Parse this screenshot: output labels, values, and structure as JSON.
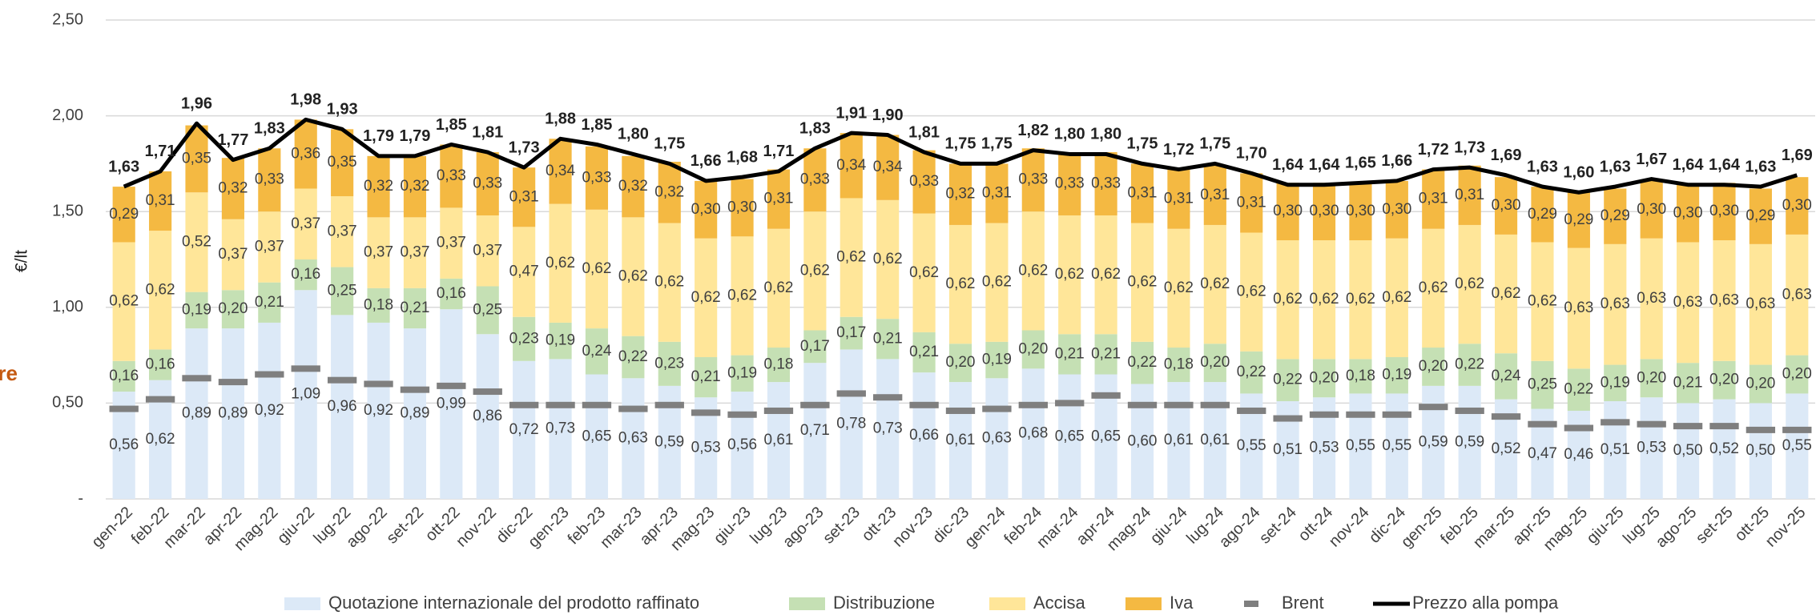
{
  "chart_data": {
    "type": "bar",
    "stacked": true,
    "y_axis_label": "€/lt",
    "side_label": "re",
    "categories": [
      "gen-22",
      "feb-22",
      "mar-22",
      "apr-22",
      "mag-22",
      "giu-22",
      "lug-22",
      "ago-22",
      "set-22",
      "ott-22",
      "nov-22",
      "dic-22",
      "gen-23",
      "feb-23",
      "mar-23",
      "apr-23",
      "mag-23",
      "giu-23",
      "lug-23",
      "ago-23",
      "set-23",
      "ott-23",
      "nov-23",
      "dic-23",
      "gen-24",
      "feb-24",
      "mar-24",
      "apr-24",
      "mag-24",
      "giu-24",
      "lug-24",
      "ago-24",
      "set-24",
      "ott-24",
      "nov-24",
      "dic-24",
      "gen-25",
      "feb-25",
      "mar-25",
      "apr-25",
      "mag-25",
      "giu-25",
      "lug-25",
      "ago-25",
      "set-25",
      "ott-25",
      "nov-25"
    ],
    "ylim": [
      0,
      2.5
    ],
    "yticks": [
      {
        "value": 0,
        "label": "-"
      },
      {
        "value": 0.5,
        "label": "0,50"
      },
      {
        "value": 1,
        "label": "1,00"
      },
      {
        "value": 1.5,
        "label": "1,50"
      },
      {
        "value": 2,
        "label": "2,00"
      },
      {
        "value": 2.5,
        "label": "2,50"
      }
    ],
    "grid": true,
    "series": [
      {
        "name": "Quotazione internazionale del prodotto raffinato",
        "kind": "bar",
        "color": "#dce9f7",
        "values": [
          0.56,
          0.62,
          0.89,
          0.89,
          0.92,
          1.09,
          0.96,
          0.92,
          0.89,
          0.99,
          0.86,
          0.72,
          0.73,
          0.65,
          0.63,
          0.59,
          0.53,
          0.56,
          0.61,
          0.71,
          0.78,
          0.73,
          0.66,
          0.61,
          0.63,
          0.68,
          0.65,
          0.65,
          0.6,
          0.61,
          0.61,
          0.55,
          0.51,
          0.53,
          0.55,
          0.55,
          0.59,
          0.59,
          0.52,
          0.47,
          0.46,
          0.51,
          0.53,
          0.5,
          0.52,
          0.5,
          0.55
        ],
        "value_labels": [
          "0,56",
          "0,62",
          "0,89",
          "0,89",
          "0,92",
          "1,09",
          "0,96",
          "0,92",
          "0,89",
          "0,99",
          "0,86",
          "0,72",
          "0,73",
          "0,65",
          "0,63",
          "0,59",
          "0,53",
          "0,56",
          "0,61",
          "0,71",
          "0,78",
          "0,73",
          "0,66",
          "0,61",
          "0,63",
          "0,68",
          "0,65",
          "0,65",
          "0,60",
          "0,61",
          "0,61",
          "0,55",
          "0,51",
          "0,53",
          "0,55",
          "0,55",
          "0,59",
          "0,59",
          "0,52",
          "0,47",
          "0,46",
          "0,51",
          "0,53",
          "0,50",
          "0,52",
          "0,50",
          "0,55"
        ]
      },
      {
        "name": "Distribuzione",
        "kind": "bar",
        "color": "#c5e0b4",
        "values": [
          0.16,
          0.16,
          0.19,
          0.2,
          0.21,
          0.16,
          0.25,
          0.18,
          0.21,
          0.16,
          0.25,
          0.23,
          0.19,
          0.24,
          0.22,
          0.23,
          0.21,
          0.19,
          0.18,
          0.17,
          0.17,
          0.21,
          0.21,
          0.2,
          0.19,
          0.2,
          0.21,
          0.21,
          0.22,
          0.18,
          0.2,
          0.22,
          0.22,
          0.2,
          0.18,
          0.19,
          0.2,
          0.22,
          0.24,
          0.25,
          0.22,
          0.19,
          0.2,
          0.21,
          0.2,
          0.2,
          0.2
        ],
        "value_labels": [
          "0,16",
          "0,16",
          "0,19",
          "0,20",
          "0,21",
          "0,16",
          "0,25",
          "0,18",
          "0,21",
          "0,16",
          "0,25",
          "0,23",
          "0,19",
          "0,24",
          "0,22",
          "0,23",
          "0,21",
          "0,19",
          "0,18",
          "0,17",
          "0,17",
          "0,21",
          "0,21",
          "0,20",
          "0,19",
          "0,20",
          "0,21",
          "0,21",
          "0,22",
          "0,18",
          "0,20",
          "0,22",
          "0,22",
          "0,20",
          "0,18",
          "0,19",
          "0,20",
          "0,22",
          "0,24",
          "0,25",
          "0,22",
          "0,19",
          "0,20",
          "0,21",
          "0,20",
          "0,20",
          "0,20"
        ]
      },
      {
        "name": "Accisa",
        "kind": "bar",
        "color": "#ffe699",
        "values": [
          0.62,
          0.62,
          0.52,
          0.37,
          0.37,
          0.37,
          0.37,
          0.37,
          0.37,
          0.37,
          0.37,
          0.47,
          0.62,
          0.62,
          0.62,
          0.62,
          0.62,
          0.62,
          0.62,
          0.62,
          0.62,
          0.62,
          0.62,
          0.62,
          0.62,
          0.62,
          0.62,
          0.62,
          0.62,
          0.62,
          0.62,
          0.62,
          0.62,
          0.62,
          0.62,
          0.62,
          0.62,
          0.62,
          0.62,
          0.62,
          0.63,
          0.63,
          0.63,
          0.63,
          0.63,
          0.63,
          0.63
        ],
        "value_labels": [
          "0,62",
          "0,62",
          "0,52",
          "0,37",
          "0,37",
          "0,37",
          "0,37",
          "0,37",
          "0,37",
          "0,37",
          "0,37",
          "0,47",
          "0,62",
          "0,62",
          "0,62",
          "0,62",
          "0,62",
          "0,62",
          "0,62",
          "0,62",
          "0,62",
          "0,62",
          "0,62",
          "0,62",
          "0,62",
          "0,62",
          "0,62",
          "0,62",
          "0,62",
          "0,62",
          "0,62",
          "0,62",
          "0,62",
          "0,62",
          "0,62",
          "0,62",
          "0,62",
          "0,62",
          "0,62",
          "0,62",
          "0,63",
          "0,63",
          "0,63",
          "0,63",
          "0,63",
          "0,63",
          "0,63"
        ]
      },
      {
        "name": "Iva",
        "kind": "bar",
        "color": "#f4b942",
        "values": [
          0.29,
          0.31,
          0.35,
          0.32,
          0.33,
          0.36,
          0.35,
          0.32,
          0.32,
          0.33,
          0.33,
          0.31,
          0.34,
          0.33,
          0.32,
          0.32,
          0.3,
          0.3,
          0.31,
          0.33,
          0.34,
          0.34,
          0.33,
          0.32,
          0.31,
          0.33,
          0.33,
          0.33,
          0.31,
          0.31,
          0.31,
          0.31,
          0.3,
          0.3,
          0.3,
          0.3,
          0.31,
          0.31,
          0.3,
          0.29,
          0.29,
          0.29,
          0.3,
          0.3,
          0.3,
          0.29,
          0.3
        ],
        "value_labels": [
          "0,29",
          "0,31",
          "0,35",
          "0,32",
          "0,33",
          "0,36",
          "0,35",
          "0,32",
          "0,32",
          "0,33",
          "0,33",
          "0,31",
          "0,34",
          "0,33",
          "0,32",
          "0,32",
          "0,30",
          "0,30",
          "0,31",
          "0,33",
          "0,34",
          "0,34",
          "0,33",
          "0,32",
          "0,31",
          "0,33",
          "0,33",
          "0,33",
          "0,31",
          "0,31",
          "0,31",
          "0,31",
          "0,30",
          "0,30",
          "0,30",
          "0,30",
          "0,31",
          "0,31",
          "0,30",
          "0,29",
          "0,29",
          "0,29",
          "0,30",
          "0,30",
          "0,30",
          "0,29",
          "0,30"
        ]
      },
      {
        "name": "Brent",
        "kind": "marker",
        "color": "#7f7f7f",
        "values": [
          0.47,
          0.52,
          0.63,
          0.61,
          0.65,
          0.68,
          0.62,
          0.6,
          0.57,
          0.59,
          0.56,
          0.49,
          0.49,
          0.49,
          0.47,
          0.49,
          0.45,
          0.44,
          0.46,
          0.49,
          0.55,
          0.53,
          0.49,
          0.46,
          0.47,
          0.49,
          0.5,
          0.54,
          0.49,
          0.49,
          0.49,
          0.46,
          0.42,
          0.44,
          0.44,
          0.44,
          0.48,
          0.46,
          0.43,
          0.39,
          0.37,
          0.4,
          0.39,
          0.38,
          0.38,
          0.36,
          0.36
        ]
      },
      {
        "name": "Prezzo alla pompa",
        "kind": "line",
        "color": "#000000",
        "values": [
          1.63,
          1.71,
          1.96,
          1.77,
          1.83,
          1.98,
          1.93,
          1.79,
          1.79,
          1.85,
          1.81,
          1.73,
          1.88,
          1.85,
          1.8,
          1.75,
          1.66,
          1.68,
          1.71,
          1.83,
          1.91,
          1.9,
          1.81,
          1.75,
          1.75,
          1.82,
          1.8,
          1.8,
          1.75,
          1.72,
          1.75,
          1.7,
          1.64,
          1.64,
          1.65,
          1.66,
          1.72,
          1.73,
          1.69,
          1.63,
          1.6,
          1.63,
          1.67,
          1.64,
          1.64,
          1.63,
          1.69
        ],
        "value_labels": [
          "1,63",
          "1,71",
          "1,96",
          "1,77",
          "1,83",
          "1,98",
          "1,93",
          "1,79",
          "1,79",
          "1,85",
          "1,81",
          "1,73",
          "1,88",
          "1,85",
          "1,80",
          "1,75",
          "1,66",
          "1,68",
          "1,71",
          "1,83",
          "1,91",
          "1,90",
          "1,81",
          "1,75",
          "1,75",
          "1,82",
          "1,80",
          "1,80",
          "1,75",
          "1,72",
          "1,75",
          "1,70",
          "1,64",
          "1,64",
          "1,65",
          "1,66",
          "1,72",
          "1,73",
          "1,69",
          "1,63",
          "1,60",
          "1,63",
          "1,67",
          "1,64",
          "1,64",
          "1,63",
          "1,69"
        ]
      }
    ]
  }
}
